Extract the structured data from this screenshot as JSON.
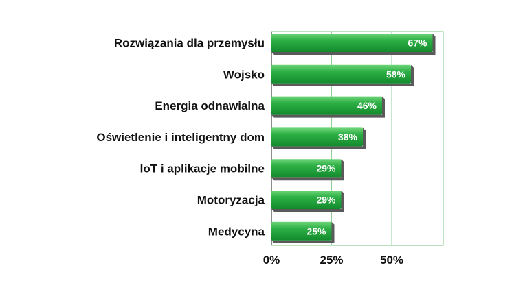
{
  "chart_data": {
    "type": "bar",
    "orientation": "horizontal",
    "categories": [
      "Rozwiązania dla przemysłu",
      "Wojsko",
      "Energia odnawialna",
      "Oświetlenie i inteligentny dom",
      "IoT i aplikacje mobilne",
      "Motoryzacja",
      "Medycyna"
    ],
    "values": [
      67,
      58,
      46,
      38,
      29,
      29,
      25
    ],
    "value_labels": [
      "67%",
      "58%",
      "46%",
      "38%",
      "29%",
      "29%",
      "25%"
    ],
    "x_ticks": [
      0,
      25,
      50
    ],
    "x_tick_labels": [
      "0%",
      "25%",
      "50%"
    ],
    "xlim": [
      0,
      70
    ],
    "grid": true,
    "legend": "none",
    "colors": {
      "bar_light": "#4cc35a",
      "bar_mid": "#1fa03a",
      "bar_dark": "#0d6e22",
      "bar_shadow": "#5a5a5a",
      "grid": "#8fcf9a",
      "frame": "#8fcf9a"
    }
  }
}
